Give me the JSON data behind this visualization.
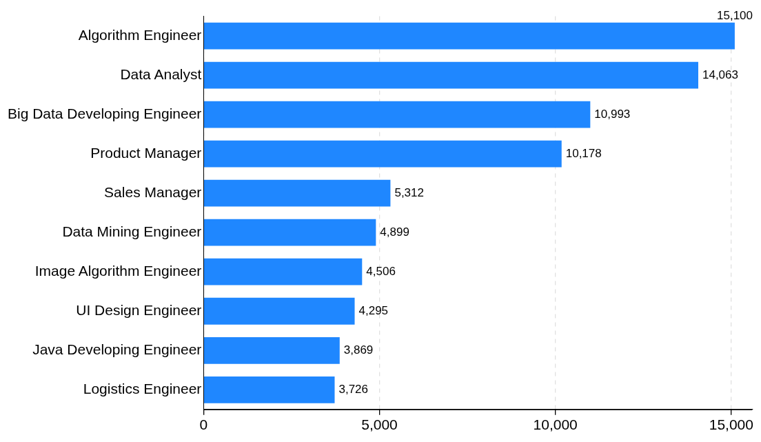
{
  "chart_data": {
    "type": "bar",
    "orientation": "horizontal",
    "categories": [
      "Algorithm Engineer",
      "Data Analyst",
      "Big Data Developing Engineer",
      "Product Manager",
      "Sales Manager",
      "Data Mining Engineer",
      "Image Algorithm Engineer",
      "UI Design Engineer",
      "Java Developing Engineer",
      "Logistics Engineer"
    ],
    "values": [
      15100,
      14063,
      10993,
      10178,
      5312,
      4899,
      4506,
      4295,
      3869,
      3726
    ],
    "color": "#1f87ff",
    "xlim": [
      0,
      15600
    ],
    "xticks": [
      {
        "value": 0,
        "label": "0"
      },
      {
        "value": 5000,
        "label": "5,000"
      },
      {
        "value": 10000,
        "label": "10,000"
      },
      {
        "value": 15000,
        "label": "15,000"
      }
    ],
    "value_labels": [
      "15,100",
      "14,063",
      "10,993",
      "10,178",
      "5,312",
      "4,899",
      "4,506",
      "4,295",
      "3,869",
      "3,726"
    ],
    "grid": "x",
    "legend": false
  }
}
